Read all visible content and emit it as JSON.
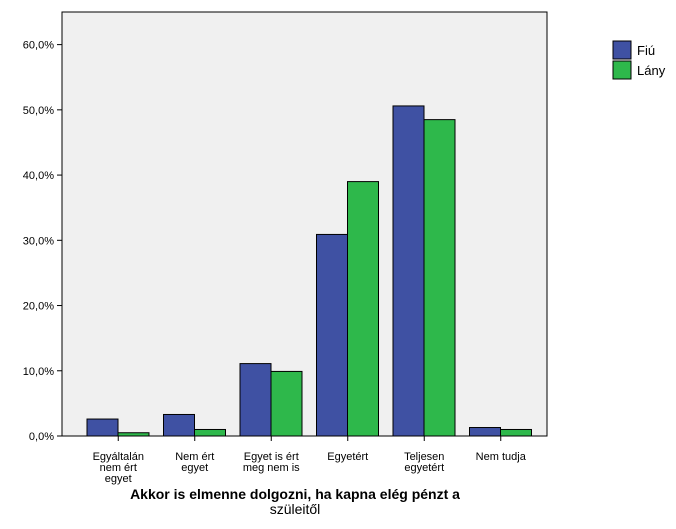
{
  "chart_data": {
    "type": "bar",
    "title": "",
    "xlabel": "Akkor is elmenne dolgozni, ha kapna elég pénzt a szüleitől",
    "xlabel_lines": [
      "Akkor is elmenne dolgozni, ha kapna elég pénzt a",
      "szüleitől"
    ],
    "ylabel": "",
    "ylim": [
      0,
      65
    ],
    "yticks": [
      0,
      10,
      20,
      30,
      40,
      50,
      60
    ],
    "ytick_labels": [
      "0,0%",
      "10,0%",
      "20,0%",
      "30,0%",
      "40,0%",
      "50,0%",
      "60,0%"
    ],
    "categories": [
      [
        "Egyáltalán",
        "nem ért",
        "egyet"
      ],
      [
        "Nem ért",
        "egyet"
      ],
      [
        "Egyet is ért",
        "meg nem is"
      ],
      [
        "Egyetért"
      ],
      [
        "Teljesen",
        "egyetért"
      ],
      [
        "Nem tudja"
      ]
    ],
    "series": [
      {
        "name": "Fiú",
        "color": "#3f51a3",
        "values": [
          2.6,
          3.3,
          11.1,
          30.9,
          50.6,
          1.3
        ]
      },
      {
        "name": "Lány",
        "color": "#2eb84b",
        "values": [
          0.5,
          1.0,
          9.9,
          39.0,
          48.5,
          1.0
        ]
      }
    ],
    "legend_position": "right",
    "grid": false,
    "plot_background": "#f0f0f0"
  }
}
